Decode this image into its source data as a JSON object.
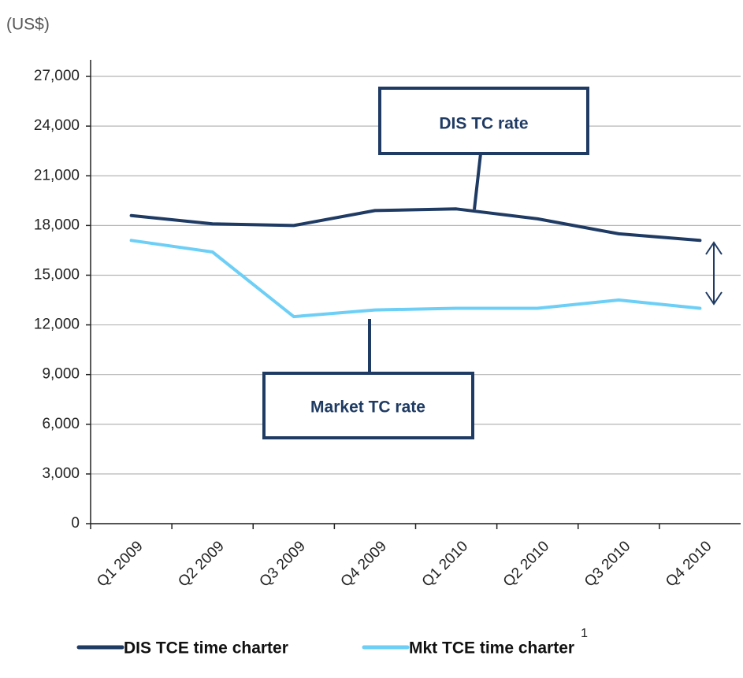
{
  "chart_data": {
    "type": "line",
    "unit_label": "(US$)",
    "categories": [
      "Q1 2009",
      "Q2 2009",
      "Q3 2009",
      "Q4 2009",
      "Q1 2010",
      "Q2 2010",
      "Q3 2010",
      "Q4 2010"
    ],
    "series": [
      {
        "name": "DIS TCE time charter",
        "color": "#1f3b63",
        "values": [
          18600,
          18100,
          18000,
          18900,
          19000,
          18400,
          17500,
          17100
        ]
      },
      {
        "name": "Mkt TCE time charter",
        "color": "#6dcff6",
        "values": [
          17100,
          16400,
          12500,
          12900,
          13000,
          13000,
          13500,
          13000
        ]
      }
    ],
    "ylim": [
      0,
      28000
    ],
    "yticks": [
      0,
      {
        "value": 3000,
        "label": "3,000"
      },
      {
        "value": 6000,
        "label": "6,000"
      },
      {
        "value": 9000,
        "label": "9,000"
      },
      {
        "value": 12000,
        "label": "12,000"
      },
      {
        "value": 15000,
        "label": "15,000"
      },
      {
        "value": 18000,
        "label": "18,000"
      },
      {
        "value": 21000,
        "label": "21,000"
      },
      {
        "value": 24000,
        "label": "24,000"
      },
      {
        "value": 27000,
        "label": "27,000"
      }
    ],
    "grid": true,
    "annotations": [
      "DIS TC rate",
      "Market TC rate"
    ],
    "footnote_marker": "1"
  }
}
